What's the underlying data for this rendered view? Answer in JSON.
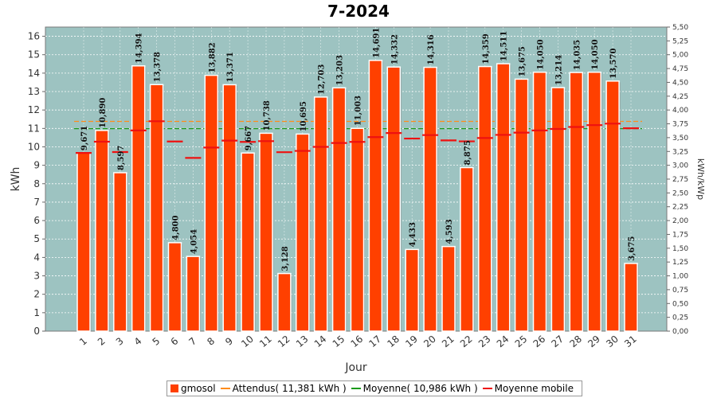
{
  "chart_data": {
    "type": "bar",
    "title": "7-2024",
    "xlabel": "Jour",
    "ylabel_left": "kWh",
    "ylabel_right": "kWh/kWp",
    "ylim_left": [
      0,
      16.5
    ],
    "ylim_right": [
      0,
      5.5
    ],
    "yticks_left": [
      "0",
      "1",
      "2",
      "3",
      "4",
      "5",
      "6",
      "7",
      "8",
      "9",
      "10",
      "11",
      "12",
      "13",
      "14",
      "15",
      "16"
    ],
    "yticks_right": [
      "0,00",
      "0,25",
      "0,50",
      "0,75",
      "1,00",
      "1,25",
      "1,50",
      "1,75",
      "2,00",
      "2,25",
      "2,50",
      "2,75",
      "3,00",
      "3,25",
      "3,50",
      "3,75",
      "4,00",
      "4,25",
      "4,50",
      "4,75",
      "5,00",
      "5,25",
      "5,50"
    ],
    "grid": true,
    "legend_position": "bottom",
    "categories": [
      "1",
      "2",
      "3",
      "4",
      "5",
      "6",
      "7",
      "8",
      "9",
      "10",
      "11",
      "12",
      "13",
      "14",
      "15",
      "16",
      "17",
      "18",
      "19",
      "20",
      "21",
      "22",
      "23",
      "24",
      "25",
      "26",
      "27",
      "28",
      "29",
      "30",
      "31"
    ],
    "series": [
      {
        "name": "gmosol",
        "type": "bar",
        "color": "#ff4000",
        "values": [
          9.671,
          10.89,
          8.597,
          14.394,
          13.378,
          4.8,
          4.054,
          13.882,
          13.371,
          9.667,
          10.738,
          3.128,
          10.695,
          12.703,
          13.203,
          11.003,
          14.691,
          14.332,
          4.433,
          14.316,
          4.593,
          8.875,
          14.359,
          14.511,
          13.675,
          14.05,
          13.214,
          14.035,
          14.05,
          13.57,
          3.675
        ],
        "labels": [
          "9,671",
          "10,890",
          "8,597",
          "14,394",
          "13,378",
          "4,800",
          "4,054",
          "13,882",
          "13,371",
          "9,667",
          "10,738",
          "3,128",
          "10,695",
          "12,703",
          "13,203",
          "11,003",
          "14,691",
          "14,332",
          "4,433",
          "14,316",
          "4,593",
          "8,875",
          "14,359",
          "14,511",
          "13,675",
          "14,050",
          "13,214",
          "14,035",
          "14,050",
          "13,570",
          "3,675"
        ]
      },
      {
        "name": "Attendus( 11,381 kWh )",
        "type": "line",
        "color": "#ff8c1a",
        "value": 11.381
      },
      {
        "name": "Moyenne( 10,986 kWh )",
        "type": "line",
        "color": "#1a9a1a",
        "value": 10.986
      },
      {
        "name": "Moyenne mobile",
        "type": "marker",
        "color": "#ee1111",
        "values": [
          9.67,
          10.28,
          9.72,
          10.89,
          11.39,
          10.29,
          9.4,
          9.96,
          10.34,
          10.27,
          10.31,
          9.71,
          9.78,
          10.0,
          10.21,
          10.27,
          10.53,
          10.75,
          10.45,
          10.64,
          10.35,
          10.3,
          10.48,
          10.65,
          10.77,
          10.89,
          10.97,
          11.08,
          11.18,
          11.26,
          11.01
        ]
      }
    ]
  },
  "legend": [
    {
      "label": "gmosol",
      "kind": "box",
      "color": "#ff4000"
    },
    {
      "label": "Attendus( 11,381 kWh )",
      "kind": "line",
      "color": "#ff8c1a"
    },
    {
      "label": "Moyenne( 10,986 kWh )",
      "kind": "line",
      "color": "#1a9a1a"
    },
    {
      "label": "Moyenne mobile",
      "kind": "line",
      "color": "#ee1111"
    }
  ]
}
